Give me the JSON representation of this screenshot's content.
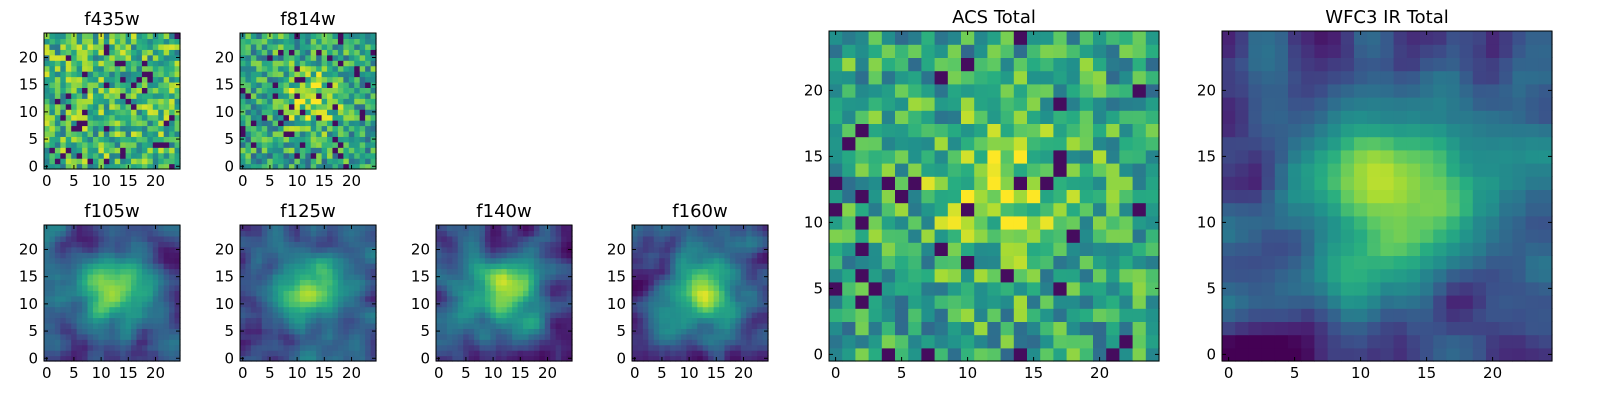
{
  "chart_data": [
    {
      "type": "heatmap",
      "title": "f435w",
      "xticks": [
        0,
        5,
        10,
        15,
        20
      ],
      "yticks": [
        0,
        5,
        10,
        15,
        20
      ],
      "xlim": [
        0,
        25
      ],
      "ylim": [
        0,
        25
      ],
      "grid": false,
      "colormap": "viridis",
      "style": "noise",
      "seed": 11
    },
    {
      "type": "heatmap",
      "title": "f814w",
      "xticks": [
        0,
        5,
        10,
        15,
        20
      ],
      "yticks": [
        0,
        5,
        10,
        15,
        20
      ],
      "xlim": [
        0,
        25
      ],
      "ylim": [
        0,
        25
      ],
      "grid": false,
      "colormap": "viridis",
      "style": "noise-center",
      "seed": 23
    },
    {
      "type": "heatmap",
      "title": "f105w",
      "xticks": [
        0,
        5,
        10,
        15,
        20
      ],
      "yticks": [
        0,
        5,
        10,
        15,
        20
      ],
      "xlim": [
        0,
        25
      ],
      "ylim": [
        0,
        25
      ],
      "grid": false,
      "colormap": "viridis",
      "style": "smooth-center",
      "seed": 37
    },
    {
      "type": "heatmap",
      "title": "f125w",
      "xticks": [
        0,
        5,
        10,
        15,
        20
      ],
      "yticks": [
        0,
        5,
        10,
        15,
        20
      ],
      "xlim": [
        0,
        25
      ],
      "ylim": [
        0,
        25
      ],
      "grid": false,
      "colormap": "viridis",
      "style": "smooth-center",
      "seed": 41
    },
    {
      "type": "heatmap",
      "title": "f140w",
      "xticks": [
        0,
        5,
        10,
        15,
        20
      ],
      "yticks": [
        0,
        5,
        10,
        15,
        20
      ],
      "xlim": [
        0,
        25
      ],
      "ylim": [
        0,
        25
      ],
      "grid": false,
      "colormap": "viridis",
      "style": "smooth-center",
      "seed": 53
    },
    {
      "type": "heatmap",
      "title": "f160w",
      "xticks": [
        0,
        5,
        10,
        15,
        20
      ],
      "yticks": [
        0,
        5,
        10,
        15,
        20
      ],
      "xlim": [
        0,
        25
      ],
      "ylim": [
        0,
        25
      ],
      "grid": false,
      "colormap": "viridis",
      "style": "smooth-center",
      "seed": 67
    },
    {
      "type": "heatmap",
      "title": "ACS Total",
      "xticks": [
        0,
        5,
        10,
        15,
        20
      ],
      "yticks": [
        0,
        5,
        10,
        15,
        20
      ],
      "xlim": [
        0,
        25
      ],
      "ylim": [
        0,
        25
      ],
      "grid": false,
      "colormap": "viridis",
      "style": "noise-center",
      "seed": 79
    },
    {
      "type": "heatmap",
      "title": "WFC3 IR Total",
      "xticks": [
        0,
        5,
        10,
        15,
        20
      ],
      "yticks": [
        0,
        5,
        10,
        15,
        20
      ],
      "xlim": [
        0,
        25
      ],
      "ylim": [
        0,
        25
      ],
      "grid": false,
      "colormap": "viridis",
      "style": "smooth-center",
      "seed": 97
    }
  ]
}
